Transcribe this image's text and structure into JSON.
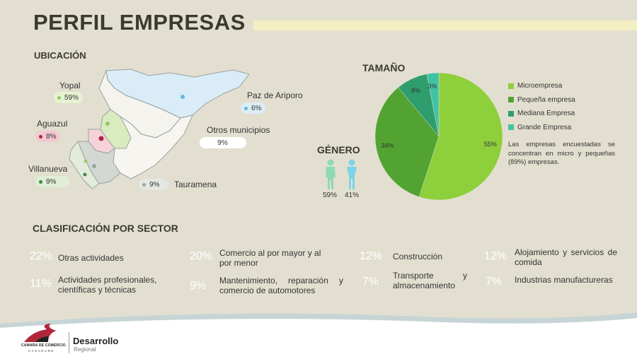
{
  "title": "PERFIL EMPRESAS",
  "ubicacion": {
    "heading": "UBICACIÓN",
    "locations": [
      {
        "name": "Yopal",
        "pct": "59%",
        "color": "#8fc963",
        "bg": "#e8f2d2"
      },
      {
        "name": "Paz de Ariporo",
        "pct": "6%",
        "color": "#63b7e6",
        "bg": "#dcedf6"
      },
      {
        "name": "Aguazul",
        "pct": "8%",
        "color": "#b0263b",
        "bg": "#f3c9cf"
      },
      {
        "name": "Otros municipios",
        "pct": "9%",
        "color": "#ffffff",
        "bg": "#ffffff"
      },
      {
        "name": "Villanueva",
        "pct": "9%",
        "color": "#3b8a3e",
        "bg": "#dfeed5"
      },
      {
        "name": "Tauramena",
        "pct": "9%",
        "color": "#9aa8a0",
        "bg": "#e4e8e2"
      }
    ]
  },
  "tamano": {
    "heading": "TAMAÑO",
    "note": "Las empresas encuestadas se concentran en micro y pequeñas (89%) empresas."
  },
  "genero": {
    "heading": "GÉNERO",
    "female_pct": "59%",
    "male_pct": "41%",
    "female_color": "#8ed9b4",
    "male_color": "#7ed3e6"
  },
  "chart_data": {
    "type": "pie",
    "categories": [
      "Microempresa",
      "Pequeña empresa",
      "Mediana Empresa",
      "Grande Empresa"
    ],
    "values": [
      55,
      34,
      8,
      3
    ],
    "labels": [
      "55%",
      "34%",
      "8%",
      "3%"
    ],
    "colors": [
      "#8ecf3c",
      "#52a332",
      "#2e9e6e",
      "#3fc2a6"
    ],
    "legend": "right"
  },
  "sector": {
    "heading": "CLASIFICACIÓN POR SECTOR",
    "items": [
      {
        "pct": "22%",
        "label": "Otras actividades"
      },
      {
        "pct": "20%",
        "label": "Comercio al por mayor y al por menor"
      },
      {
        "pct": "12%",
        "label": "Construcción"
      },
      {
        "pct": "12%",
        "label": "Alojamiento y servicios de comida"
      },
      {
        "pct": "11%",
        "label": "Actividades profesionales, científicas y técnicas"
      },
      {
        "pct": "9%",
        "label": "Mantenimiento, reparación y comercio de automotores"
      },
      {
        "pct": "7%",
        "label": "Transporte y almacenamiento"
      },
      {
        "pct": "7%",
        "label": "Industrias manufactureras"
      }
    ]
  },
  "footer": {
    "chamber_name": "CAMARA DE COMERCIO",
    "chamber_sub": "CASANARE",
    "brand": "Desarrollo",
    "brand_sub": "Regional"
  }
}
